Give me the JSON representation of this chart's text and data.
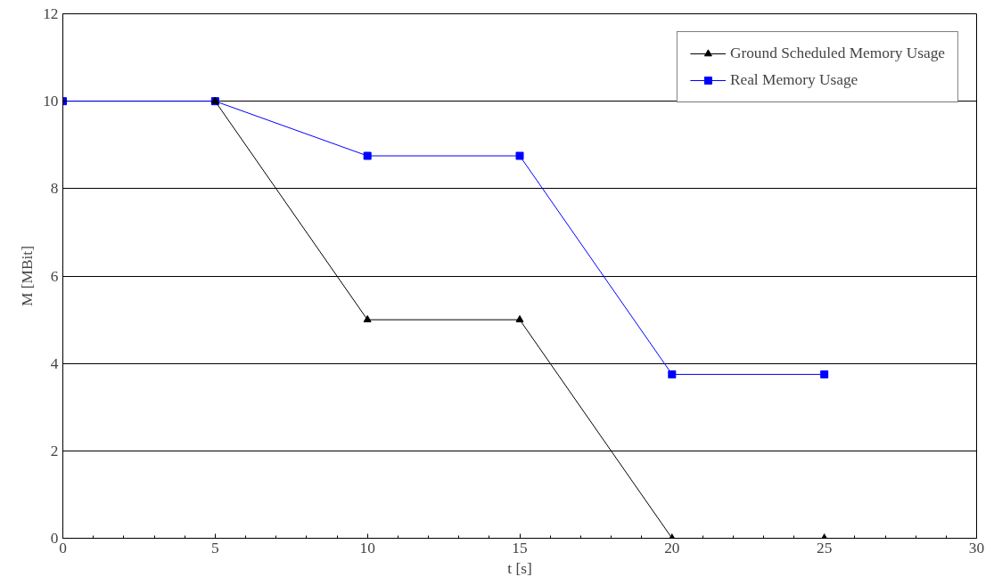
{
  "chart_data": {
    "type": "line",
    "xlabel": "t [s]",
    "ylabel": "M [MBit]",
    "xlim": [
      0,
      30
    ],
    "ylim": [
      0,
      12
    ],
    "xticks": [
      0,
      5,
      10,
      15,
      20,
      25,
      30
    ],
    "yticks": [
      0,
      2,
      4,
      6,
      8,
      10,
      12
    ],
    "grid": "y",
    "legend": "top right",
    "series": [
      {
        "name": "Ground Scheduled Memory Usage",
        "color": "#000000",
        "marker": "triangle",
        "x": [
          5,
          10,
          15,
          20,
          25
        ],
        "values": [
          10,
          5,
          5,
          0,
          0
        ]
      },
      {
        "name": "Real Memory Usage",
        "color": "#0000ff",
        "marker": "square",
        "x": [
          0,
          5,
          10,
          15,
          20,
          25
        ],
        "values": [
          10,
          10,
          8.75,
          8.75,
          3.75,
          3.75
        ]
      }
    ]
  }
}
